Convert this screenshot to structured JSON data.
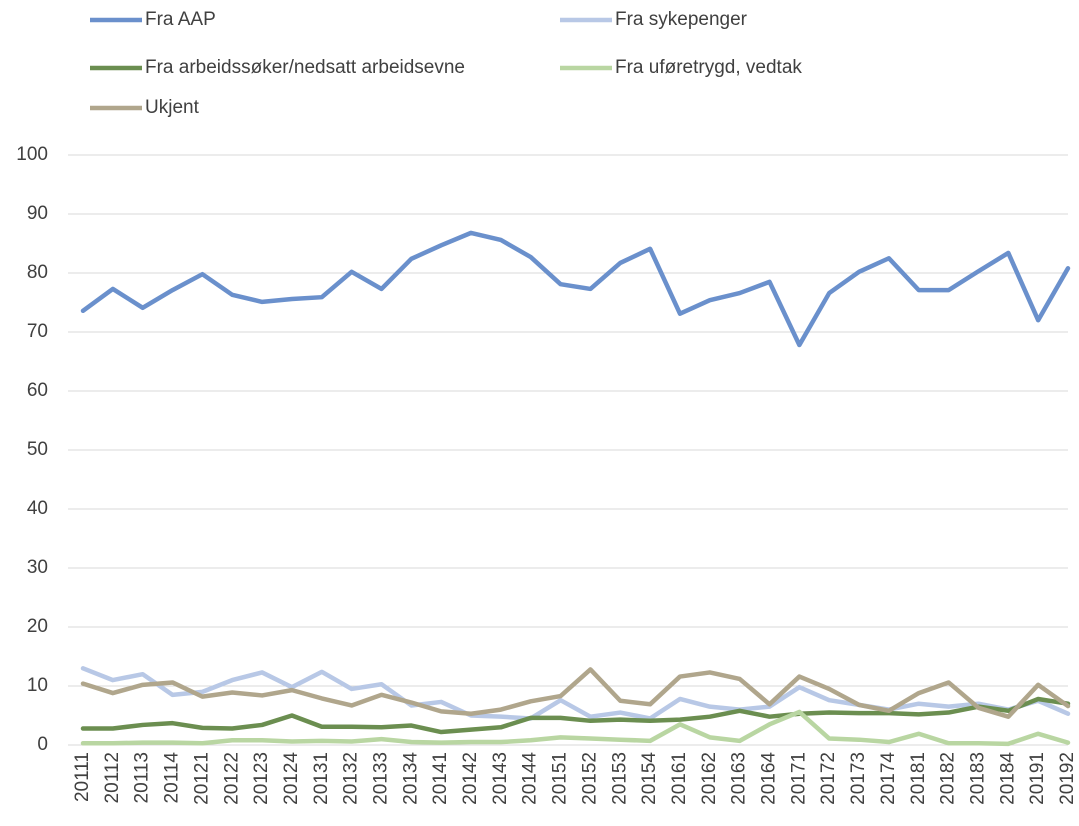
{
  "chart_data": {
    "type": "line",
    "categories": [
      "20111",
      "20112",
      "20113",
      "20114",
      "20121",
      "20122",
      "20123",
      "20124",
      "20131",
      "20132",
      "20133",
      "20134",
      "20141",
      "20142",
      "20143",
      "20144",
      "20151",
      "20152",
      "20153",
      "20154",
      "20161",
      "20162",
      "20163",
      "20164",
      "20171",
      "20172",
      "20173",
      "20174",
      "20181",
      "20182",
      "20183",
      "20184",
      "20191",
      "20192"
    ],
    "series": [
      {
        "name": "Fra AAP",
        "color": "#6a90cc",
        "values": [
          73.6,
          77.3,
          74.1,
          77.1,
          79.8,
          76.3,
          75.1,
          75.6,
          75.9,
          80.2,
          77.3,
          82.4,
          84.7,
          86.8,
          85.6,
          82.7,
          78.1,
          77.3,
          81.7,
          84.1,
          73.1,
          75.4,
          76.6,
          78.5,
          67.8,
          76.6,
          80.2,
          82.5,
          77.1,
          77.1,
          80.3,
          83.4,
          72.0,
          80.8
        ]
      },
      {
        "name": "Fra sykepenger",
        "color": "#b8c8e6",
        "values": [
          13.0,
          11.0,
          12.0,
          8.5,
          9.0,
          11.0,
          12.3,
          9.8,
          12.4,
          9.5,
          10.3,
          6.7,
          7.3,
          5.0,
          4.8,
          4.5,
          7.6,
          4.8,
          5.5,
          4.5,
          7.8,
          6.5,
          6.0,
          6.5,
          9.8,
          7.6,
          6.8,
          6.0,
          7.0,
          6.5,
          7.0,
          6.0,
          7.5,
          5.3
        ]
      },
      {
        "name": "Fra arbeidssøker/nedsatt arbeidsevne",
        "color": "#6b8e50",
        "values": [
          2.8,
          2.8,
          3.4,
          3.7,
          2.9,
          2.8,
          3.4,
          5.0,
          3.1,
          3.1,
          3.0,
          3.3,
          2.2,
          2.6,
          3.0,
          4.6,
          4.6,
          4.1,
          4.3,
          4.1,
          4.3,
          4.8,
          5.8,
          4.8,
          5.3,
          5.5,
          5.4,
          5.4,
          5.2,
          5.5,
          6.5,
          5.8,
          7.8,
          7.0
        ]
      },
      {
        "name": "Fra uføretrygd, vedtak",
        "color": "#b9d6a2",
        "values": [
          0.3,
          0.3,
          0.4,
          0.4,
          0.3,
          0.8,
          0.8,
          0.6,
          0.7,
          0.6,
          1.0,
          0.5,
          0.4,
          0.5,
          0.5,
          0.8,
          1.3,
          1.1,
          0.9,
          0.7,
          3.5,
          1.3,
          0.7,
          3.5,
          5.6,
          1.1,
          0.9,
          0.5,
          1.9,
          0.3,
          0.3,
          0.2,
          1.9,
          0.4
        ]
      },
      {
        "name": "Ukjent",
        "color": "#b0a68c",
        "values": [
          10.4,
          8.8,
          10.2,
          10.6,
          8.2,
          8.9,
          8.4,
          9.3,
          7.9,
          6.7,
          8.5,
          7.2,
          5.7,
          5.3,
          6.0,
          7.4,
          8.3,
          12.8,
          7.5,
          6.9,
          11.6,
          12.3,
          11.2,
          6.9,
          11.6,
          9.5,
          6.8,
          5.8,
          8.8,
          10.6,
          6.3,
          4.8,
          10.2,
          6.6
        ]
      }
    ],
    "ylim": [
      0,
      100
    ],
    "yticks": [
      0,
      10,
      20,
      30,
      40,
      50,
      60,
      70,
      80,
      90,
      100
    ],
    "grid": true,
    "legend": "top"
  }
}
